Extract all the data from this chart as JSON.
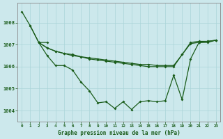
{
  "background_color": "#cce8ec",
  "grid_color": "#aad4d8",
  "line_color": "#1a5c1a",
  "spine_color": "#888888",
  "title": "Graphe pression niveau de la mer (hPa)",
  "xlim": [
    -0.5,
    23.5
  ],
  "ylim": [
    1003.5,
    1008.9
  ],
  "yticks": [
    1004,
    1005,
    1006,
    1007,
    1008
  ],
  "xticks": [
    0,
    1,
    2,
    3,
    4,
    5,
    6,
    7,
    8,
    9,
    10,
    11,
    12,
    13,
    14,
    15,
    16,
    17,
    18,
    19,
    20,
    21,
    22,
    23
  ],
  "line1_x": [
    0,
    1,
    2,
    3
  ],
  "line1_y": [
    1008.5,
    1007.85,
    1007.1,
    1007.1
  ],
  "line2_x": [
    2,
    3,
    4,
    5,
    6,
    7,
    8,
    9,
    10,
    11,
    12,
    13,
    14,
    15,
    16,
    17,
    18,
    19,
    20,
    21,
    22,
    23
  ],
  "line2_y": [
    1007.1,
    1006.5,
    1006.05,
    1006.05,
    1005.85,
    1005.3,
    1004.9,
    1004.35,
    1004.4,
    1004.1,
    1004.4,
    1004.05,
    1004.4,
    1004.45,
    1004.4,
    1004.45,
    1005.6,
    1004.5,
    1006.35,
    1007.1,
    1007.1,
    1007.2
  ],
  "line3_x": [
    1,
    2,
    3,
    4,
    5,
    6,
    7,
    8,
    9,
    10,
    11,
    12,
    13,
    14,
    15,
    16,
    17,
    18,
    19,
    20,
    21,
    22,
    23
  ],
  "line3_y": [
    1007.85,
    1007.1,
    1006.85,
    1006.7,
    1006.6,
    1006.5,
    1006.45,
    1006.35,
    1006.3,
    1006.25,
    1006.2,
    1006.15,
    1006.1,
    1006.05,
    1006.0,
    1006.0,
    1006.0,
    1006.0,
    1006.55,
    1007.1,
    1007.15,
    1007.15,
    1007.2
  ],
  "line4_x": [
    2,
    3,
    4,
    5,
    6,
    7,
    8,
    9,
    10,
    11,
    12,
    13,
    14,
    15,
    16,
    17,
    18,
    19,
    20,
    21,
    22,
    23
  ],
  "line4_y": [
    1007.1,
    1006.85,
    1006.7,
    1006.6,
    1006.55,
    1006.45,
    1006.4,
    1006.35,
    1006.3,
    1006.25,
    1006.2,
    1006.15,
    1006.1,
    1006.1,
    1006.05,
    1006.05,
    1006.05,
    1006.55,
    1007.05,
    1007.1,
    1007.15,
    1007.2
  ]
}
